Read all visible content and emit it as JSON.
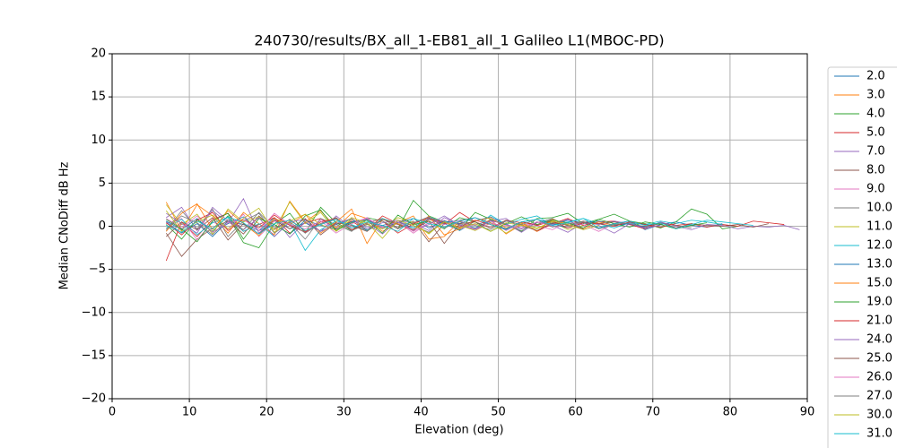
{
  "chart_data": {
    "type": "line",
    "title": "240730/results/BX_all_1-EB81_all_1 Galileo L1(MBOC-PD)",
    "x_label": "Elevation (deg)",
    "y_label": "Median CNoDiff dB Hz",
    "xlim": [
      0,
      90
    ],
    "ylim": [
      -20,
      20
    ],
    "xticks": [
      0,
      10,
      20,
      30,
      40,
      50,
      60,
      70,
      80,
      90
    ],
    "yticks": [
      {
        "value": -20,
        "label": "−20"
      },
      {
        "value": -15,
        "label": "−15"
      },
      {
        "value": -10,
        "label": "−10"
      },
      {
        "value": -5,
        "label": "−5"
      },
      0,
      5,
      10,
      15,
      20
    ],
    "grid": true,
    "legend": "outside right",
    "x": [
      7,
      9,
      11,
      13,
      15,
      17,
      19,
      21,
      23,
      25,
      27,
      29,
      31,
      33,
      35,
      37,
      39,
      41,
      43,
      45,
      47,
      49,
      51,
      53,
      55,
      57,
      59,
      61,
      63,
      65,
      67,
      69,
      71,
      73,
      75,
      77,
      79,
      81,
      83,
      85,
      87,
      89
    ],
    "series": [
      {
        "name": "2.0",
        "color": "#1f77b4",
        "values": [
          0.5,
          -0.8,
          0.3,
          -1.2,
          0.6,
          0.2,
          -0.5,
          1.0,
          -0.3,
          0.4,
          -0.6,
          0.2,
          0.8,
          -0.4,
          0.1,
          0.5,
          -0.2,
          0.9,
          0.3,
          -0.5,
          0.6,
          1.1,
          0.2,
          -0.3,
          0.5,
          0.1,
          0.7,
          0.4,
          -0.2,
          0.3,
          0.6,
          -0.4,
          0.2,
          0.5,
          0.1,
          -0.1,
          0.3,
          null,
          null,
          null,
          null,
          null
        ]
      },
      {
        "name": "3.0",
        "color": "#ff7f0e",
        "values": [
          2.8,
          -0.5,
          2.5,
          1.2,
          -0.8,
          1.6,
          0.3,
          -1.0,
          2.9,
          0.5,
          1.8,
          -0.2,
          1.5,
          0.9,
          -0.6,
          0.4,
          1.2,
          -1.5,
          -1.2,
          0.6,
          -0.3,
          0.8,
          -0.9,
          0.2,
          -0.5,
          null,
          null,
          null,
          null,
          null,
          null,
          null,
          null,
          null,
          null,
          null,
          null,
          null,
          null,
          null,
          null,
          null
        ]
      },
      {
        "name": "4.0",
        "color": "#2ca02c",
        "values": [
          0.2,
          -1.5,
          0.8,
          -0.6,
          1.2,
          -1.9,
          -2.5,
          0.3,
          1.5,
          -0.8,
          2.2,
          0.4,
          -0.5,
          1.0,
          0.6,
          -0.3,
          3.0,
          1.2,
          0.5,
          -0.4,
          1.6,
          0.8,
          0.2,
          -0.6,
          0.9,
          1.0,
          1.5,
          0.3,
          0.8,
          1.4,
          0.6,
          0.3,
          -0.2,
          0.5,
          2.0,
          1.4,
          -0.3,
          0.0,
          null,
          null,
          null,
          null
        ]
      },
      {
        "name": "5.0",
        "color": "#d62728",
        "values": [
          -4.0,
          0.5,
          -1.2,
          0.8,
          1.5,
          -0.6,
          0.2,
          1.0,
          -0.8,
          0.4,
          0.9,
          -0.3,
          0.6,
          -0.5,
          1.2,
          0.3,
          -0.4,
          0.8,
          0.2,
          1.6,
          0.5,
          -0.2,
          0.7,
          0.4,
          -0.6,
          0.3,
          0.9,
          0.1,
          0.5,
          0.6,
          0.2,
          -0.3,
          0.4,
          0.1,
          0.3,
          -0.1,
          0.2,
          0.0,
          0.6,
          0.4,
          0.2,
          null
        ]
      },
      {
        "name": "7.0",
        "color": "#9467bd",
        "values": [
          1.0,
          2.2,
          -0.5,
          1.8,
          0.4,
          3.2,
          -0.8,
          0.9,
          -1.3,
          0.5,
          -0.6,
          1.2,
          -0.2,
          0.3,
          -0.9,
          0.7,
          0.4,
          -0.5,
          1.0,
          0.2,
          -0.4,
          0.6,
          0.9,
          -0.3,
          0.5,
          0.1,
          -0.7,
          0.4,
          0.2,
          0.6,
          0.3,
          -0.2,
          0.5,
          0.0,
          -0.4,
          0.2,
          0.1,
          -0.3,
          0.0,
          -0.1,
          0.1,
          -0.4
        ]
      },
      {
        "name": "8.0",
        "color": "#8c564b",
        "values": [
          -0.8,
          -3.5,
          -1.5,
          -0.2,
          0.6,
          -0.9,
          1.2,
          -0.4,
          0.8,
          -0.6,
          0.3,
          1.0,
          -0.5,
          0.4,
          0.9,
          -0.2,
          0.6,
          -1.8,
          0.3,
          0.7,
          1.0,
          0.4,
          -0.3,
          0.5,
          0.2,
          0.8,
          0.1,
          0.6,
          0.3,
          0.5,
          0.2,
          0.0,
          0.4,
          -0.2,
          0.3,
          0.1,
          0.0,
          0.2,
          -0.1,
          0.3,
          null,
          null
        ]
      },
      {
        "name": "9.0",
        "color": "#e377c2",
        "values": [
          0.3,
          0.9,
          -1.6,
          0.5,
          -0.3,
          1.4,
          -1.2,
          0.6,
          0.2,
          -0.7,
          0.8,
          -0.4,
          0.3,
          1.0,
          -0.2,
          0.5,
          -0.8,
          0.4,
          0.7,
          -0.3,
          0.2,
          0.6,
          -0.5,
          0.3,
          0.1,
          -0.4,
          0.5,
          0.2,
          -0.6,
          0.3,
          null,
          null,
          null,
          null,
          null,
          null,
          null,
          null,
          null,
          null,
          null,
          null
        ]
      },
      {
        "name": "10.0",
        "color": "#7f7f7f",
        "values": [
          -0.5,
          1.8,
          -0.3,
          2.0,
          -1.2,
          0.6,
          1.5,
          -0.8,
          0.4,
          -1.5,
          0.9,
          0.2,
          -0.6,
          0.8,
          -0.3,
          0.5,
          0.1,
          -0.7,
          0.6,
          0.3,
          -0.2,
          0.7,
          0.2,
          -0.5,
          0.4,
          0.9,
          0.0,
          0.5,
          -0.3,
          0.2,
          0.4,
          -0.1,
          0.3,
          0.1,
          -0.2,
          null,
          null,
          null,
          null,
          null,
          null,
          null
        ]
      },
      {
        "name": "11.0",
        "color": "#bcbd22",
        "values": [
          2.5,
          0.2,
          1.4,
          -0.9,
          2.0,
          0.5,
          1.1,
          -0.4,
          2.8,
          0.3,
          1.6,
          -0.6,
          0.8,
          0.2,
          -0.3,
          1.0,
          0.4,
          -0.9,
          0.6,
          0.1,
          -0.5,
          0.4,
          -0.8,
          0.3,
          -0.2,
          0.5,
          -0.4,
          0.1,
          null,
          null,
          null,
          null,
          null,
          null,
          null,
          null,
          null,
          null,
          null,
          null,
          null,
          null
        ]
      },
      {
        "name": "12.0",
        "color": "#17becf",
        "values": [
          -0.2,
          0.8,
          -1.0,
          0.4,
          1.0,
          -0.6,
          0.3,
          -1.2,
          0.5,
          -2.8,
          -0.4,
          0.6,
          0.2,
          -0.5,
          0.9,
          0.3,
          -0.2,
          1.1,
          0.4,
          0.7,
          -0.3,
          1.3,
          0.2,
          0.8,
          1.2,
          0.1,
          0.5,
          0.9,
          0.3,
          -0.2,
          0.4,
          0.2,
          0.6,
          0.3,
          0.7,
          0.5,
          0.2,
          null,
          null,
          null,
          null,
          null
        ]
      },
      {
        "name": "13.0",
        "color": "#1f77b4",
        "values": [
          0.6,
          -0.4,
          0.9,
          -0.7,
          0.3,
          1.1,
          -0.5,
          0.2,
          -0.9,
          0.7,
          0.1,
          -0.3,
          0.5,
          0.8,
          -0.1,
          0.4,
          0.9,
          -0.2,
          0.6,
          0.3,
          1.0,
          0.2,
          -0.4,
          0.5,
          0.8,
          0.3,
          -0.2,
          0.4,
          0.6,
          0.1,
          0.3,
          -0.1,
          null,
          null,
          null,
          null,
          null,
          null,
          null,
          null,
          null,
          null
        ]
      },
      {
        "name": "15.0",
        "color": "#ff7f0e",
        "values": [
          -0.6,
          1.5,
          2.6,
          -0.4,
          1.8,
          0.3,
          -1.1,
          0.9,
          0.2,
          1.4,
          -0.8,
          0.5,
          2.0,
          -2.0,
          0.8,
          0.3,
          -0.5,
          1.2,
          -1.0,
          -0.3,
          0.6,
          1.0,
          -0.2,
          0.4,
          -0.6,
          0.8,
          0.2,
          -0.3,
          0.5,
          0.1,
          null,
          null,
          null,
          null,
          null,
          null,
          null,
          null,
          null,
          null,
          null,
          null
        ]
      },
      {
        "name": "19.0",
        "color": "#2ca02c",
        "values": [
          0.8,
          -0.3,
          -1.8,
          0.6,
          1.5,
          -1.5,
          0.9,
          0.2,
          -0.9,
          1.2,
          1.9,
          -0.5,
          0.4,
          0.7,
          -0.8,
          1.3,
          0.2,
          0.6,
          -0.3,
          1.0,
          0.5,
          -0.6,
          0.3,
          1.1,
          0.2,
          0.7,
          0.4,
          -0.2,
          0.8,
          0.3,
          -0.1,
          0.5,
          0.2,
          -0.3,
          0.1,
          0.4,
          null,
          null,
          null,
          null,
          null,
          null
        ]
      },
      {
        "name": "21.0",
        "color": "#d62728",
        "values": [
          0.4,
          -1.0,
          0.7,
          1.6,
          -0.5,
          0.8,
          -0.2,
          1.3,
          0.1,
          -0.7,
          0.5,
          0.9,
          -0.4,
          0.2,
          0.6,
          -0.8,
          0.3,
          1.0,
          0.4,
          -0.1,
          0.7,
          0.2,
          -0.3,
          0.5,
          0.1,
          0.6,
          -0.2,
          0.4,
          0.3,
          0.0,
          0.5,
          0.2,
          -0.1,
          0.3,
          null,
          null,
          null,
          null,
          null,
          null,
          null,
          null
        ]
      },
      {
        "name": "24.0",
        "color": "#9467bd",
        "values": [
          1.5,
          0.3,
          -0.8,
          2.2,
          0.6,
          -0.4,
          1.0,
          -1.2,
          0.5,
          0.8,
          -0.6,
          0.3,
          0.9,
          -0.2,
          0.4,
          0.7,
          -0.5,
          0.2,
          1.2,
          0.1,
          -0.3,
          0.6,
          0.3,
          -0.7,
          0.5,
          0.2,
          0.8,
          -0.4,
          0.1,
          -0.8,
          0.3,
          -0.2,
          0.1,
          null,
          null,
          null,
          null,
          null,
          null,
          null,
          null,
          null
        ]
      },
      {
        "name": "25.0",
        "color": "#8c564b",
        "values": [
          -1.2,
          0.5,
          -0.4,
          1.0,
          -1.6,
          0.3,
          -0.9,
          0.7,
          -0.3,
          0.9,
          -1.0,
          0.4,
          0.1,
          -0.6,
          0.8,
          0.2,
          -0.4,
          0.6,
          -2.0,
          0.3,
          0.5,
          -0.2,
          0.7,
          0.1,
          -0.5,
          0.4,
          0.2,
          -0.3,
          null,
          null,
          null,
          null,
          null,
          null,
          null,
          null,
          null,
          null,
          null,
          null,
          null,
          null
        ]
      },
      {
        "name": "26.0",
        "color": "#e377c2",
        "values": [
          0.9,
          -0.2,
          1.2,
          -0.7,
          0.4,
          0.8,
          -0.5,
          1.5,
          0.2,
          -0.3,
          0.6,
          -0.8,
          0.3,
          0.9,
          -0.1,
          0.5,
          -0.6,
          0.4,
          0.2,
          0.7,
          -0.4,
          0.3,
          0.1,
          -0.2,
          0.5,
          0.0,
          null,
          null,
          null,
          null,
          null,
          null,
          null,
          null,
          null,
          null,
          null,
          null,
          null,
          null,
          null,
          null
        ]
      },
      {
        "name": "27.0",
        "color": "#7f7f7f",
        "values": [
          -0.3,
          1.2,
          0.4,
          -1.0,
          0.8,
          -0.4,
          1.6,
          -0.2,
          0.5,
          -0.8,
          0.3,
          0.9,
          -0.5,
          0.2,
          0.6,
          -0.3,
          0.4,
          1.1,
          -0.2,
          0.5,
          0.1,
          -0.4,
          0.6,
          0.2,
          0.8,
          -0.1,
          0.3,
          0.5,
          -0.3,
          0.2,
          0.4,
          null,
          null,
          null,
          null,
          null,
          null,
          null,
          null,
          null,
          null,
          null
        ]
      },
      {
        "name": "30.0",
        "color": "#bcbd22",
        "values": [
          1.8,
          -0.6,
          0.5,
          1.3,
          -0.3,
          0.9,
          2.1,
          -0.7,
          0.6,
          1.4,
          0.2,
          -0.5,
          1.0,
          0.4,
          -1.4,
          0.7,
          0.1,
          -0.8,
          0.5,
          -0.2,
          0.3,
          -0.6,
          0.4,
          0.1,
          -0.3,
          0.6,
          0.2,
          -0.4,
          0.1,
          null,
          null,
          null,
          null,
          null,
          null,
          null,
          null,
          null,
          null,
          null,
          null,
          null
        ]
      },
      {
        "name": "31.0",
        "color": "#17becf",
        "values": [
          0.1,
          -0.7,
          0.6,
          -0.3,
          1.1,
          0.4,
          -0.9,
          0.3,
          0.7,
          -0.5,
          0.2,
          0.8,
          -0.2,
          0.5,
          0.1,
          -0.6,
          0.9,
          0.3,
          -0.1,
          0.6,
          1.0,
          0.2,
          -0.3,
          0.5,
          0.8,
          0.1,
          0.4,
          0.9,
          -0.2,
          0.3,
          0.6,
          0.1,
          0.4,
          -0.3,
          0.2,
          0.7,
          0.5,
          0.3,
          0.1,
          null,
          null,
          null
        ]
      }
    ]
  }
}
